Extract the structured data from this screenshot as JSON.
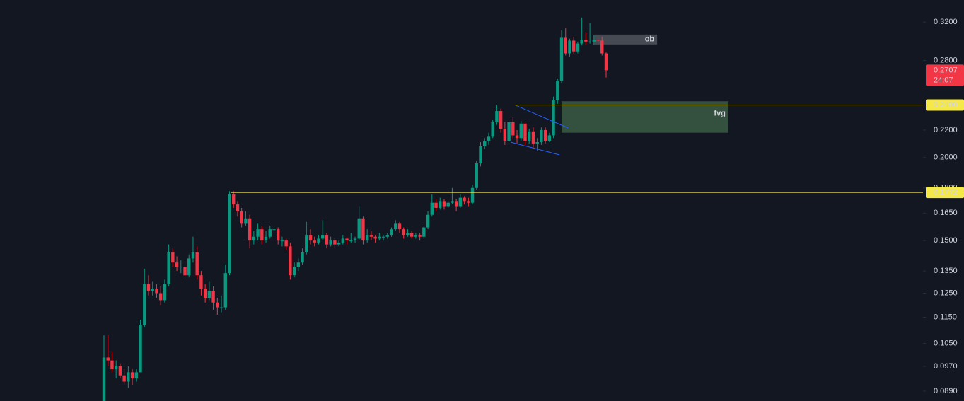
{
  "chart_data": {
    "type": "candlestick",
    "log_scale": true,
    "ylim": [
      0.086,
      0.3454
    ],
    "yticks": [
      {
        "value": 0.32,
        "label": "0.3200"
      },
      {
        "value": 0.28,
        "label": "0.2800"
      },
      {
        "value": 0.22,
        "label": "0.2200"
      },
      {
        "value": 0.2,
        "label": "0.2000"
      },
      {
        "value": 0.18,
        "label": "0.1800"
      },
      {
        "value": 0.165,
        "label": "0.1650"
      },
      {
        "value": 0.15,
        "label": "0.1500"
      },
      {
        "value": 0.135,
        "label": "0.1350"
      },
      {
        "value": 0.125,
        "label": "0.1250"
      },
      {
        "value": 0.115,
        "label": "0.1150"
      },
      {
        "value": 0.105,
        "label": "0.1050"
      },
      {
        "value": 0.097,
        "label": "0.0970"
      },
      {
        "value": 0.089,
        "label": "0.0890"
      }
    ],
    "up_color": "#089981",
    "down_color": "#f23645",
    "open": [
      0.086,
      0.1,
      0.099,
      0.096,
      0.097,
      0.094,
      0.092,
      0.095,
      0.093,
      0.095,
      0.112,
      0.129,
      0.126,
      0.127,
      0.125,
      0.122,
      0.129,
      0.144,
      0.139,
      0.137,
      0.137,
      0.133,
      0.141,
      0.144,
      0.133,
      0.127,
      0.123,
      0.126,
      0.121,
      0.119,
      0.119,
      0.134,
      0.176,
      0.17,
      0.166,
      0.159,
      0.162,
      0.15,
      0.152,
      0.156,
      0.15,
      0.152,
      0.156,
      0.156,
      0.15,
      0.15,
      0.147,
      0.133,
      0.137,
      0.139,
      0.144,
      0.153,
      0.15,
      0.149,
      0.151,
      0.153,
      0.148,
      0.15,
      0.148,
      0.149,
      0.151,
      0.15,
      0.15,
      0.151,
      0.162,
      0.15,
      0.153,
      0.152,
      0.151,
      0.152,
      0.152,
      0.153,
      0.156,
      0.159,
      0.156,
      0.153,
      0.154,
      0.152,
      0.153,
      0.152,
      0.157,
      0.164,
      0.171,
      0.168,
      0.172,
      0.169,
      0.171,
      0.172,
      0.169,
      0.174,
      0.172,
      0.171,
      0.18,
      0.196,
      0.208,
      0.212,
      0.215,
      0.226,
      0.235,
      0.221,
      0.212,
      0.226,
      0.216,
      0.214,
      0.225,
      0.212,
      0.219,
      0.21,
      0.211,
      0.22,
      0.212,
      0.216,
      0.244,
      0.261,
      0.303,
      0.287,
      0.3,
      0.289,
      0.297,
      0.301,
      0.299,
      0.299,
      0.301,
      0.3,
      0.287
    ],
    "high": [
      0.108,
      0.108,
      0.102,
      0.099,
      0.098,
      0.096,
      0.097,
      0.096,
      0.096,
      0.114,
      0.136,
      0.133,
      0.13,
      0.129,
      0.128,
      0.131,
      0.148,
      0.146,
      0.142,
      0.14,
      0.139,
      0.143,
      0.152,
      0.147,
      0.135,
      0.129,
      0.13,
      0.128,
      0.123,
      0.124,
      0.138,
      0.178,
      0.178,
      0.172,
      0.168,
      0.166,
      0.164,
      0.155,
      0.159,
      0.158,
      0.155,
      0.158,
      0.157,
      0.157,
      0.152,
      0.151,
      0.149,
      0.139,
      0.141,
      0.146,
      0.16,
      0.156,
      0.152,
      0.153,
      0.161,
      0.154,
      0.152,
      0.151,
      0.15,
      0.153,
      0.152,
      0.154,
      0.152,
      0.169,
      0.163,
      0.156,
      0.155,
      0.153,
      0.154,
      0.153,
      0.154,
      0.157,
      0.161,
      0.16,
      0.157,
      0.156,
      0.155,
      0.154,
      0.154,
      0.158,
      0.166,
      0.176,
      0.173,
      0.174,
      0.173,
      0.172,
      0.18,
      0.173,
      0.176,
      0.175,
      0.174,
      0.182,
      0.198,
      0.211,
      0.214,
      0.218,
      0.228,
      0.24,
      0.237,
      0.226,
      0.228,
      0.23,
      0.22,
      0.227,
      0.226,
      0.221,
      0.222,
      0.214,
      0.222,
      0.222,
      0.218,
      0.247,
      0.263,
      0.311,
      0.313,
      0.302,
      0.304,
      0.299,
      0.325,
      0.309,
      0.319,
      0.306,
      0.303,
      0.304,
      0.288
    ],
    "low": [
      0.086,
      0.097,
      0.095,
      0.093,
      0.093,
      0.091,
      0.09,
      0.091,
      0.092,
      0.095,
      0.111,
      0.124,
      0.124,
      0.123,
      0.12,
      0.121,
      0.128,
      0.137,
      0.135,
      0.134,
      0.131,
      0.132,
      0.139,
      0.131,
      0.124,
      0.121,
      0.122,
      0.118,
      0.116,
      0.117,
      0.118,
      0.133,
      0.168,
      0.163,
      0.157,
      0.158,
      0.146,
      0.148,
      0.15,
      0.148,
      0.149,
      0.151,
      0.152,
      0.148,
      0.147,
      0.145,
      0.131,
      0.132,
      0.135,
      0.138,
      0.143,
      0.148,
      0.147,
      0.148,
      0.15,
      0.146,
      0.147,
      0.146,
      0.147,
      0.148,
      0.148,
      0.149,
      0.149,
      0.15,
      0.148,
      0.149,
      0.15,
      0.149,
      0.15,
      0.15,
      0.151,
      0.152,
      0.155,
      0.154,
      0.151,
      0.152,
      0.151,
      0.151,
      0.15,
      0.151,
      0.156,
      0.163,
      0.166,
      0.167,
      0.167,
      0.168,
      0.17,
      0.166,
      0.168,
      0.17,
      0.169,
      0.17,
      0.179,
      0.194,
      0.206,
      0.209,
      0.214,
      0.224,
      0.218,
      0.209,
      0.211,
      0.213,
      0.21,
      0.212,
      0.209,
      0.21,
      0.207,
      0.205,
      0.209,
      0.21,
      0.211,
      0.214,
      0.241,
      0.259,
      0.285,
      0.284,
      0.286,
      0.287,
      0.295,
      0.296,
      0.297,
      0.296,
      0.296,
      0.285,
      0.264
    ],
    "close": [
      0.1,
      0.099,
      0.096,
      0.097,
      0.094,
      0.092,
      0.095,
      0.093,
      0.095,
      0.112,
      0.129,
      0.126,
      0.127,
      0.125,
      0.122,
      0.129,
      0.144,
      0.139,
      0.137,
      0.137,
      0.133,
      0.141,
      0.144,
      0.133,
      0.127,
      0.123,
      0.126,
      0.121,
      0.119,
      0.119,
      0.134,
      0.176,
      0.17,
      0.166,
      0.159,
      0.162,
      0.15,
      0.152,
      0.156,
      0.15,
      0.152,
      0.156,
      0.156,
      0.15,
      0.15,
      0.147,
      0.133,
      0.137,
      0.139,
      0.144,
      0.153,
      0.15,
      0.149,
      0.151,
      0.153,
      0.148,
      0.15,
      0.148,
      0.149,
      0.151,
      0.15,
      0.15,
      0.151,
      0.162,
      0.15,
      0.153,
      0.152,
      0.151,
      0.152,
      0.152,
      0.153,
      0.156,
      0.159,
      0.156,
      0.153,
      0.154,
      0.152,
      0.153,
      0.152,
      0.157,
      0.164,
      0.171,
      0.168,
      0.172,
      0.169,
      0.171,
      0.172,
      0.169,
      0.174,
      0.172,
      0.171,
      0.18,
      0.196,
      0.208,
      0.212,
      0.215,
      0.226,
      0.235,
      0.221,
      0.212,
      0.226,
      0.216,
      0.214,
      0.225,
      0.212,
      0.219,
      0.21,
      0.211,
      0.22,
      0.212,
      0.216,
      0.244,
      0.261,
      0.303,
      0.287,
      0.3,
      0.289,
      0.297,
      0.301,
      0.299,
      0.299,
      0.301,
      0.3,
      0.287,
      0.2707
    ],
    "levels": [
      {
        "value": 0.24,
        "label": "0.2400",
        "start": 101.6,
        "color": "#f5e94a"
      },
      {
        "value": 0.1772,
        "start": 31.4,
        "color": "#f5e94a"
      }
    ],
    "zones": [
      {
        "label": "fvg",
        "start": 113,
        "end": 154.2,
        "low": 0.218,
        "high": 0.2431,
        "color": "#3b5a44"
      },
      {
        "label": "ob",
        "start": 121.1,
        "end": 136.6,
        "low": 0.2961,
        "high": 0.3064,
        "color": "#50535c"
      }
    ],
    "trendlines": [
      {
        "x": [
          101.6,
          114.6
        ],
        "y": [
          0.2398,
          0.2216
        ],
        "color": "#2962ff"
      },
      {
        "x": [
          100.4,
          112.5
        ],
        "y": [
          0.211,
          0.2019
        ],
        "color": "#2962ff"
      }
    ],
    "last_price": {
      "value": 0.2707,
      "countdown": "24:07",
      "color": "#f23645"
    }
  }
}
